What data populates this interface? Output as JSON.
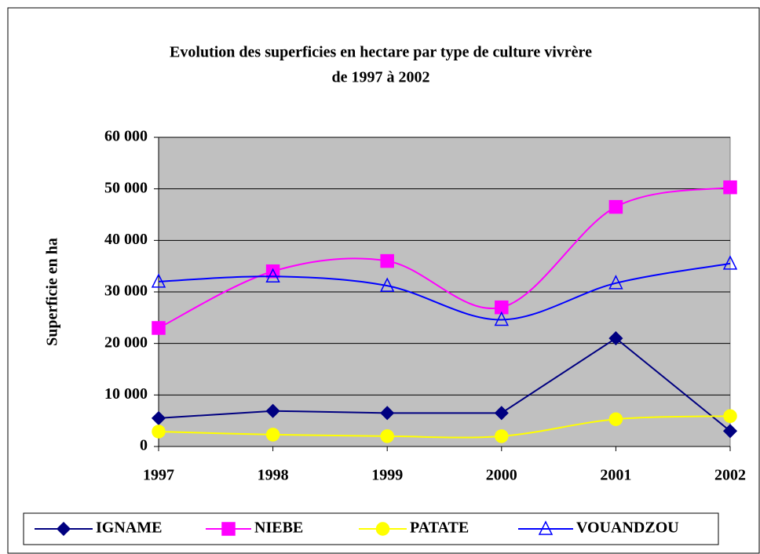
{
  "chart_data": {
    "type": "line",
    "title": [
      "Evolution des superficies en hectare par type de culture vivrère",
      "de 1997 à 2002"
    ],
    "y_label": "Superficie en ha",
    "categories": [
      "1997",
      "1998",
      "1999",
      "2000",
      "2001",
      "2002"
    ],
    "series": [
      {
        "name": "IGNAME",
        "color": "#000080",
        "marker": "diamond",
        "smooth": false,
        "values": [
          5500,
          6900,
          6500,
          6500,
          21000,
          3000
        ]
      },
      {
        "name": "NIEBE",
        "color": "#ff00ff",
        "marker": "square",
        "smooth": true,
        "values": [
          23000,
          34000,
          36000,
          27000,
          46500,
          50300
        ]
      },
      {
        "name": "PATATE",
        "color": "#ffff00",
        "marker": "circle",
        "smooth": true,
        "values": [
          2900,
          2300,
          2000,
          2000,
          5300,
          5900
        ]
      },
      {
        "name": "VOUANDZOU",
        "color": "#0000ff",
        "marker": "triangle",
        "smooth": true,
        "values": [
          32000,
          33000,
          31200,
          24600,
          31700,
          35500
        ]
      }
    ],
    "ylim": [
      0,
      60000
    ],
    "yticks": [
      0,
      {
        "value": 10000,
        "label": "10 000"
      },
      {
        "value": 20000,
        "label": "20 000"
      },
      {
        "value": 30000,
        "label": "30 000"
      },
      {
        "value": 40000,
        "label": "40 000"
      },
      {
        "value": 50000,
        "label": "50 000"
      },
      {
        "value": 60000,
        "label": "60 000"
      }
    ],
    "grid": true,
    "plot_background": "#c0c0c0",
    "legend_position": "bottom"
  }
}
